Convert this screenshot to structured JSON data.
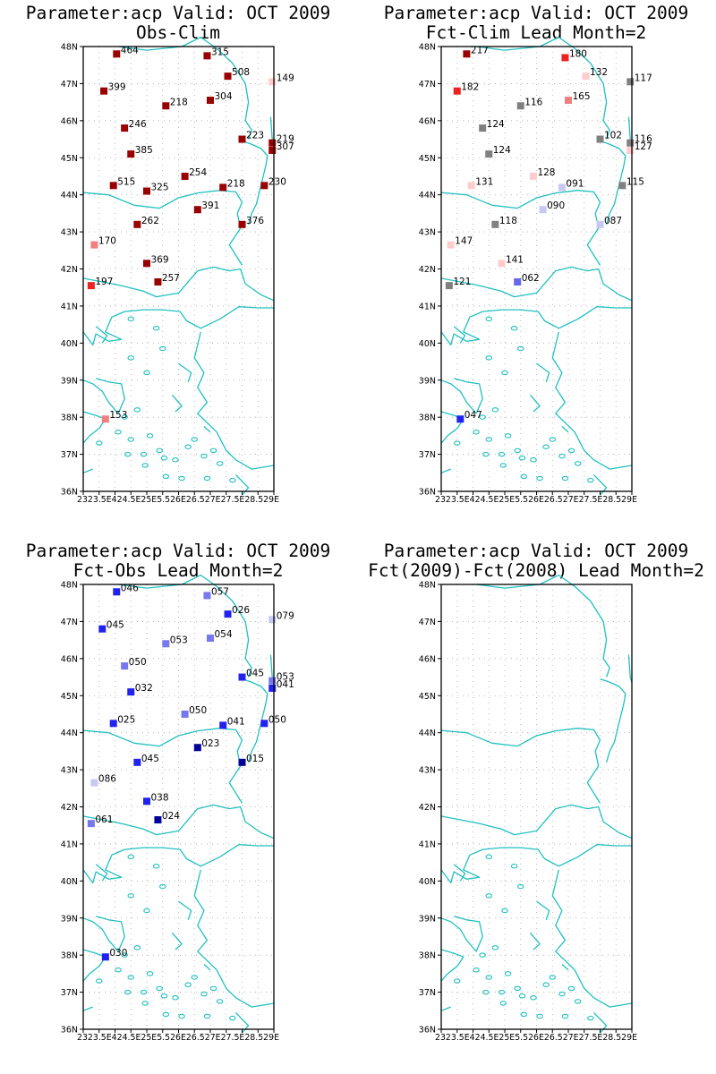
{
  "panels": [
    {
      "id": "obs-clim",
      "title_line1": "Parameter:acp Valid: OCT 2009",
      "title_line2": "Obs-Clim",
      "points": [
        {
          "lon": 24.05,
          "lat": 47.8,
          "label": "464",
          "color": "#990000"
        },
        {
          "lon": 26.9,
          "lat": 47.75,
          "label": "315",
          "color": "#990000"
        },
        {
          "lon": 27.55,
          "lat": 47.2,
          "label": "508",
          "color": "#990000"
        },
        {
          "lon": 28.95,
          "lat": 47.05,
          "label": "149",
          "color": "#ffcccc"
        },
        {
          "lon": 23.65,
          "lat": 46.8,
          "label": "399",
          "color": "#990000"
        },
        {
          "lon": 25.6,
          "lat": 46.4,
          "label": "218",
          "color": "#990000"
        },
        {
          "lon": 27.0,
          "lat": 46.55,
          "label": "304",
          "color": "#990000"
        },
        {
          "lon": 24.3,
          "lat": 45.8,
          "label": "246",
          "color": "#990000"
        },
        {
          "lon": 28.0,
          "lat": 45.5,
          "label": "223",
          "color": "#990000"
        },
        {
          "lon": 28.95,
          "lat": 45.4,
          "label": "219",
          "color": "#990000"
        },
        {
          "lon": 28.95,
          "lat": 45.2,
          "label": "307",
          "color": "#990000"
        },
        {
          "lon": 24.5,
          "lat": 45.1,
          "label": "385",
          "color": "#990000"
        },
        {
          "lon": 26.2,
          "lat": 44.5,
          "label": "254",
          "color": "#990000"
        },
        {
          "lon": 23.95,
          "lat": 44.25,
          "label": "515",
          "color": "#990000"
        },
        {
          "lon": 25.0,
          "lat": 44.1,
          "label": "325",
          "color": "#990000"
        },
        {
          "lon": 27.4,
          "lat": 44.2,
          "label": "218",
          "color": "#990000"
        },
        {
          "lon": 28.7,
          "lat": 44.25,
          "label": "230",
          "color": "#990000"
        },
        {
          "lon": 26.6,
          "lat": 43.6,
          "label": "391",
          "color": "#990000"
        },
        {
          "lon": 24.7,
          "lat": 43.2,
          "label": "262",
          "color": "#990000"
        },
        {
          "lon": 28.0,
          "lat": 43.2,
          "label": "376",
          "color": "#990000"
        },
        {
          "lon": 23.35,
          "lat": 42.65,
          "label": "170",
          "color": "#f08080"
        },
        {
          "lon": 25.0,
          "lat": 42.15,
          "label": "369",
          "color": "#990000"
        },
        {
          "lon": 25.35,
          "lat": 41.65,
          "label": "257",
          "color": "#990000"
        },
        {
          "lon": 23.25,
          "lat": 41.55,
          "label": "197",
          "color": "#ee2222"
        },
        {
          "lon": 23.7,
          "lat": 37.95,
          "label": "153",
          "color": "#f08080"
        }
      ]
    },
    {
      "id": "fct-clim",
      "title_line1": "Parameter:acp Valid: OCT 2009",
      "title_line2": "Fct-Clim Lead Month=2",
      "points": [
        {
          "lon": 23.8,
          "lat": 47.8,
          "label": "217",
          "color": "#990000"
        },
        {
          "lon": 26.9,
          "lat": 47.7,
          "label": "180",
          "color": "#ee2222"
        },
        {
          "lon": 27.55,
          "lat": 47.2,
          "label": "132",
          "color": "#ffcccc"
        },
        {
          "lon": 28.95,
          "lat": 47.05,
          "label": "117",
          "color": "#808080"
        },
        {
          "lon": 23.5,
          "lat": 46.8,
          "label": "182",
          "color": "#ee2222"
        },
        {
          "lon": 25.5,
          "lat": 46.4,
          "label": "116",
          "color": "#808080"
        },
        {
          "lon": 27.0,
          "lat": 46.55,
          "label": "165",
          "color": "#f08080"
        },
        {
          "lon": 24.3,
          "lat": 45.8,
          "label": "124",
          "color": "#808080"
        },
        {
          "lon": 28.0,
          "lat": 45.5,
          "label": "102",
          "color": "#808080"
        },
        {
          "lon": 28.95,
          "lat": 45.4,
          "label": "116",
          "color": "#808080"
        },
        {
          "lon": 28.95,
          "lat": 45.2,
          "label": "127",
          "color": "#ffcccc"
        },
        {
          "lon": 24.5,
          "lat": 45.1,
          "label": "124",
          "color": "#808080"
        },
        {
          "lon": 25.9,
          "lat": 44.5,
          "label": "128",
          "color": "#ffcccc"
        },
        {
          "lon": 23.95,
          "lat": 44.25,
          "label": "131",
          "color": "#ffcccc"
        },
        {
          "lon": 26.8,
          "lat": 44.2,
          "label": "091",
          "color": "#c8c8f0"
        },
        {
          "lon": 28.7,
          "lat": 44.25,
          "label": "115",
          "color": "#808080"
        },
        {
          "lon": 26.2,
          "lat": 43.6,
          "label": "090",
          "color": "#c8c8f0"
        },
        {
          "lon": 24.7,
          "lat": 43.2,
          "label": "118",
          "color": "#808080"
        },
        {
          "lon": 28.0,
          "lat": 43.2,
          "label": "087",
          "color": "#c8c8f0"
        },
        {
          "lon": 23.3,
          "lat": 42.65,
          "label": "147",
          "color": "#ffcccc"
        },
        {
          "lon": 24.9,
          "lat": 42.15,
          "label": "141",
          "color": "#ffcccc"
        },
        {
          "lon": 25.4,
          "lat": 41.65,
          "label": "062",
          "color": "#6666ee"
        },
        {
          "lon": 23.25,
          "lat": 41.55,
          "label": "121",
          "color": "#808080"
        },
        {
          "lon": 23.6,
          "lat": 37.95,
          "label": "047",
          "color": "#2222ee"
        }
      ]
    },
    {
      "id": "fct-obs",
      "title_line1": "Parameter:acp Valid: OCT 2009",
      "title_line2": "Fct-Obs Lead Month=2",
      "points": [
        {
          "lon": 24.05,
          "lat": 47.8,
          "label": "046",
          "color": "#2222ee"
        },
        {
          "lon": 26.9,
          "lat": 47.7,
          "label": "057",
          "color": "#7777ee"
        },
        {
          "lon": 27.55,
          "lat": 47.2,
          "label": "026",
          "color": "#2222ee"
        },
        {
          "lon": 28.95,
          "lat": 47.05,
          "label": "079",
          "color": "#c8c8f0"
        },
        {
          "lon": 23.6,
          "lat": 46.8,
          "label": "045",
          "color": "#2222ee"
        },
        {
          "lon": 25.6,
          "lat": 46.4,
          "label": "053",
          "color": "#7777ee"
        },
        {
          "lon": 27.0,
          "lat": 46.55,
          "label": "054",
          "color": "#7777ee"
        },
        {
          "lon": 24.3,
          "lat": 45.8,
          "label": "050",
          "color": "#7777ee"
        },
        {
          "lon": 28.0,
          "lat": 45.5,
          "label": "045",
          "color": "#2222ee"
        },
        {
          "lon": 28.95,
          "lat": 45.4,
          "label": "053",
          "color": "#7777ee"
        },
        {
          "lon": 28.95,
          "lat": 45.2,
          "label": "041",
          "color": "#2222ee"
        },
        {
          "lon": 24.5,
          "lat": 45.1,
          "label": "032",
          "color": "#2222ee"
        },
        {
          "lon": 26.2,
          "lat": 44.5,
          "label": "050",
          "color": "#7777ee"
        },
        {
          "lon": 23.95,
          "lat": 44.25,
          "label": "025",
          "color": "#2222ee"
        },
        {
          "lon": 27.4,
          "lat": 44.2,
          "label": "041",
          "color": "#2222ee"
        },
        {
          "lon": 28.7,
          "lat": 44.25,
          "label": "050",
          "color": "#2222ee"
        },
        {
          "lon": 26.6,
          "lat": 43.6,
          "label": "023",
          "color": "#000099"
        },
        {
          "lon": 24.7,
          "lat": 43.2,
          "label": "045",
          "color": "#2222ee"
        },
        {
          "lon": 28.0,
          "lat": 43.2,
          "label": "015",
          "color": "#000099"
        },
        {
          "lon": 23.35,
          "lat": 42.65,
          "label": "086",
          "color": "#c8c8f0"
        },
        {
          "lon": 25.0,
          "lat": 42.15,
          "label": "038",
          "color": "#2222ee"
        },
        {
          "lon": 25.35,
          "lat": 41.65,
          "label": "024",
          "color": "#000099"
        },
        {
          "lon": 23.25,
          "lat": 41.55,
          "label": "061",
          "color": "#7777ee"
        },
        {
          "lon": 23.7,
          "lat": 37.95,
          "label": "030",
          "color": "#2222ee"
        }
      ]
    },
    {
      "id": "fct-diff",
      "title_line1": "Parameter:acp Valid: OCT 2009",
      "title_line2": "Fct(2009)-Fct(2008) Lead Month=2",
      "points": []
    }
  ],
  "axes": {
    "lat_ticks": [
      "36N",
      "37N",
      "38N",
      "39N",
      "40N",
      "41N",
      "42N",
      "43N",
      "44N",
      "45N",
      "46N",
      "47N",
      "48N"
    ],
    "lon_ticks": [
      "23E",
      "23.5E",
      "24E",
      "24.5E",
      "25E",
      "25.5E",
      "26E",
      "26.5E",
      "27E",
      "27.5E",
      "28E",
      "28.5E",
      "29E"
    ],
    "lon_tick_text": "2323.5E424.5E25E5.526E26.527E27.5E28.529E"
  },
  "colors": {
    "coast": "#22c0c0",
    "grid": "#aaaaaa",
    "frame": "#000000"
  }
}
